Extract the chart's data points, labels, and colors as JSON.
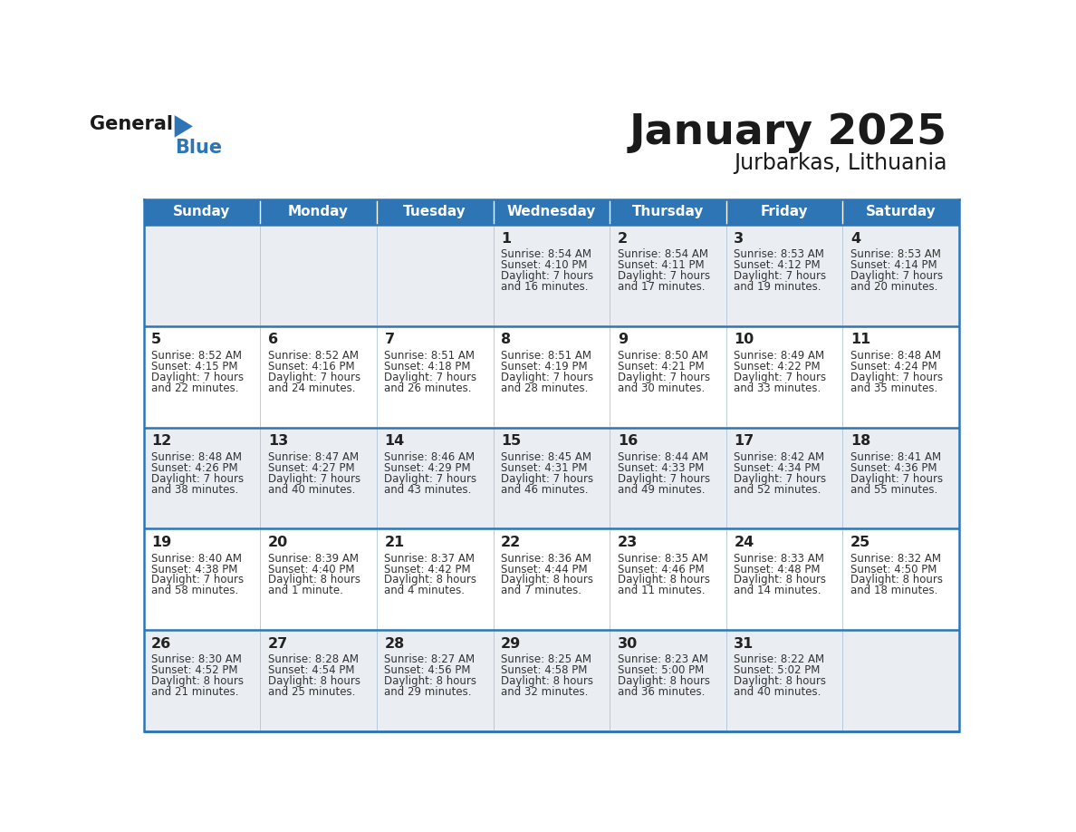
{
  "title": "January 2025",
  "subtitle": "Jurbarkas, Lithuania",
  "header_color": "#2E75B6",
  "header_text_color": "#FFFFFF",
  "cell_bg_row0": "#EAEEF3",
  "cell_bg_row1": "#FFFFFF",
  "border_color": "#2E75B6",
  "thin_border_color": "#B0C4D8",
  "day_names": [
    "Sunday",
    "Monday",
    "Tuesday",
    "Wednesday",
    "Thursday",
    "Friday",
    "Saturday"
  ],
  "title_color": "#1a1a1a",
  "subtitle_color": "#1a1a1a",
  "day_number_color": "#222222",
  "cell_text_color": "#333333",
  "logo_general_color": "#1a1a1a",
  "logo_blue_color": "#2E75B6",
  "calendar_data": [
    [
      null,
      null,
      null,
      {
        "day": 1,
        "sunrise": "8:54 AM",
        "sunset": "4:10 PM",
        "daylight": "7 hours",
        "daylight2": "and 16 minutes."
      },
      {
        "day": 2,
        "sunrise": "8:54 AM",
        "sunset": "4:11 PM",
        "daylight": "7 hours",
        "daylight2": "and 17 minutes."
      },
      {
        "day": 3,
        "sunrise": "8:53 AM",
        "sunset": "4:12 PM",
        "daylight": "7 hours",
        "daylight2": "and 19 minutes."
      },
      {
        "day": 4,
        "sunrise": "8:53 AM",
        "sunset": "4:14 PM",
        "daylight": "7 hours",
        "daylight2": "and 20 minutes."
      }
    ],
    [
      {
        "day": 5,
        "sunrise": "8:52 AM",
        "sunset": "4:15 PM",
        "daylight": "7 hours",
        "daylight2": "and 22 minutes."
      },
      {
        "day": 6,
        "sunrise": "8:52 AM",
        "sunset": "4:16 PM",
        "daylight": "7 hours",
        "daylight2": "and 24 minutes."
      },
      {
        "day": 7,
        "sunrise": "8:51 AM",
        "sunset": "4:18 PM",
        "daylight": "7 hours",
        "daylight2": "and 26 minutes."
      },
      {
        "day": 8,
        "sunrise": "8:51 AM",
        "sunset": "4:19 PM",
        "daylight": "7 hours",
        "daylight2": "and 28 minutes."
      },
      {
        "day": 9,
        "sunrise": "8:50 AM",
        "sunset": "4:21 PM",
        "daylight": "7 hours",
        "daylight2": "and 30 minutes."
      },
      {
        "day": 10,
        "sunrise": "8:49 AM",
        "sunset": "4:22 PM",
        "daylight": "7 hours",
        "daylight2": "and 33 minutes."
      },
      {
        "day": 11,
        "sunrise": "8:48 AM",
        "sunset": "4:24 PM",
        "daylight": "7 hours",
        "daylight2": "and 35 minutes."
      }
    ],
    [
      {
        "day": 12,
        "sunrise": "8:48 AM",
        "sunset": "4:26 PM",
        "daylight": "7 hours",
        "daylight2": "and 38 minutes."
      },
      {
        "day": 13,
        "sunrise": "8:47 AM",
        "sunset": "4:27 PM",
        "daylight": "7 hours",
        "daylight2": "and 40 minutes."
      },
      {
        "day": 14,
        "sunrise": "8:46 AM",
        "sunset": "4:29 PM",
        "daylight": "7 hours",
        "daylight2": "and 43 minutes."
      },
      {
        "day": 15,
        "sunrise": "8:45 AM",
        "sunset": "4:31 PM",
        "daylight": "7 hours",
        "daylight2": "and 46 minutes."
      },
      {
        "day": 16,
        "sunrise": "8:44 AM",
        "sunset": "4:33 PM",
        "daylight": "7 hours",
        "daylight2": "and 49 minutes."
      },
      {
        "day": 17,
        "sunrise": "8:42 AM",
        "sunset": "4:34 PM",
        "daylight": "7 hours",
        "daylight2": "and 52 minutes."
      },
      {
        "day": 18,
        "sunrise": "8:41 AM",
        "sunset": "4:36 PM",
        "daylight": "7 hours",
        "daylight2": "and 55 minutes."
      }
    ],
    [
      {
        "day": 19,
        "sunrise": "8:40 AM",
        "sunset": "4:38 PM",
        "daylight": "7 hours",
        "daylight2": "and 58 minutes."
      },
      {
        "day": 20,
        "sunrise": "8:39 AM",
        "sunset": "4:40 PM",
        "daylight": "8 hours",
        "daylight2": "and 1 minute."
      },
      {
        "day": 21,
        "sunrise": "8:37 AM",
        "sunset": "4:42 PM",
        "daylight": "8 hours",
        "daylight2": "and 4 minutes."
      },
      {
        "day": 22,
        "sunrise": "8:36 AM",
        "sunset": "4:44 PM",
        "daylight": "8 hours",
        "daylight2": "and 7 minutes."
      },
      {
        "day": 23,
        "sunrise": "8:35 AM",
        "sunset": "4:46 PM",
        "daylight": "8 hours",
        "daylight2": "and 11 minutes."
      },
      {
        "day": 24,
        "sunrise": "8:33 AM",
        "sunset": "4:48 PM",
        "daylight": "8 hours",
        "daylight2": "and 14 minutes."
      },
      {
        "day": 25,
        "sunrise": "8:32 AM",
        "sunset": "4:50 PM",
        "daylight": "8 hours",
        "daylight2": "and 18 minutes."
      }
    ],
    [
      {
        "day": 26,
        "sunrise": "8:30 AM",
        "sunset": "4:52 PM",
        "daylight": "8 hours",
        "daylight2": "and 21 minutes."
      },
      {
        "day": 27,
        "sunrise": "8:28 AM",
        "sunset": "4:54 PM",
        "daylight": "8 hours",
        "daylight2": "and 25 minutes."
      },
      {
        "day": 28,
        "sunrise": "8:27 AM",
        "sunset": "4:56 PM",
        "daylight": "8 hours",
        "daylight2": "and 29 minutes."
      },
      {
        "day": 29,
        "sunrise": "8:25 AM",
        "sunset": "4:58 PM",
        "daylight": "8 hours",
        "daylight2": "and 32 minutes."
      },
      {
        "day": 30,
        "sunrise": "8:23 AM",
        "sunset": "5:00 PM",
        "daylight": "8 hours",
        "daylight2": "and 36 minutes."
      },
      {
        "day": 31,
        "sunrise": "8:22 AM",
        "sunset": "5:02 PM",
        "daylight": "8 hours",
        "daylight2": "and 40 minutes."
      },
      null
    ]
  ]
}
